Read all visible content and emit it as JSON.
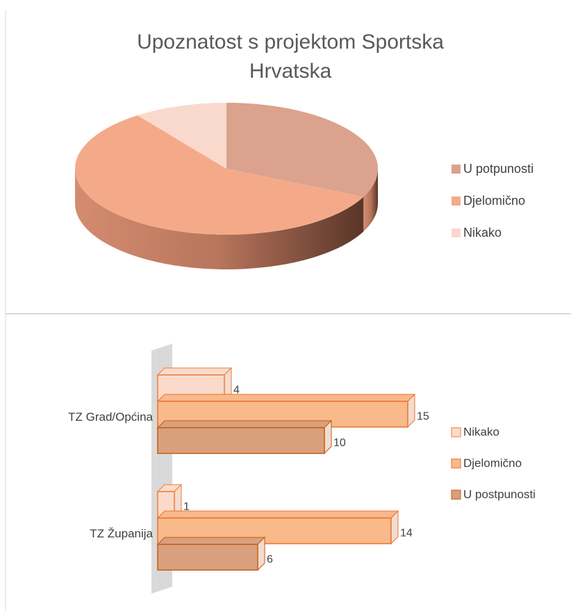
{
  "chart_data": [
    {
      "type": "pie",
      "title": "Upoznatost s projektom Sportska Hrvatska",
      "categories": [
        "U potpunosti",
        "Djelomično",
        "Nikako"
      ],
      "values": [
        16,
        29,
        5
      ],
      "colors": [
        "#dba28d",
        "#f4aa88",
        "#fad9cd"
      ],
      "legend": "right"
    },
    {
      "type": "bar",
      "orientation": "horizontal",
      "categories": [
        "TZ Grad/Općina",
        "TZ Županija"
      ],
      "series": [
        {
          "name": "Nikako",
          "color": "#fbdacb",
          "values": [
            4,
            1
          ]
        },
        {
          "name": "Djelomično",
          "color": "#f9b98a",
          "values": [
            15,
            14
          ]
        },
        {
          "name": "U postpunosti",
          "color": "#d9a07e",
          "values": [
            10,
            6
          ]
        }
      ],
      "xlim": [
        0,
        20
      ],
      "legend": "right"
    }
  ]
}
